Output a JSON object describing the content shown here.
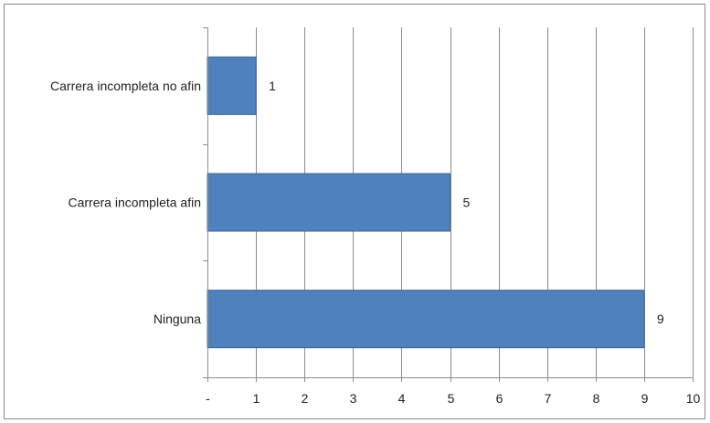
{
  "chart_data": {
    "type": "bar",
    "orientation": "horizontal",
    "title": "",
    "xlabel": "",
    "ylabel": "",
    "categories": [
      "Carrera incompleta no afin",
      "Carrera incompleta afin",
      "Ninguna"
    ],
    "values": [
      1,
      5,
      9
    ],
    "data_labels": [
      "1",
      "5",
      "9"
    ],
    "xlim": [
      0,
      10
    ],
    "x_ticks": [
      0,
      1,
      2,
      3,
      4,
      5,
      6,
      7,
      8,
      9,
      10
    ],
    "x_tick_labels": [
      "-",
      "1",
      "2",
      "3",
      "4",
      "5",
      "6",
      "7",
      "8",
      "9",
      "10"
    ],
    "grid": "vertical",
    "legend": "none",
    "bar_color": "#4f81bd",
    "bar_edge_color": "#3a6595",
    "grid_color": "#8c8c8c"
  }
}
